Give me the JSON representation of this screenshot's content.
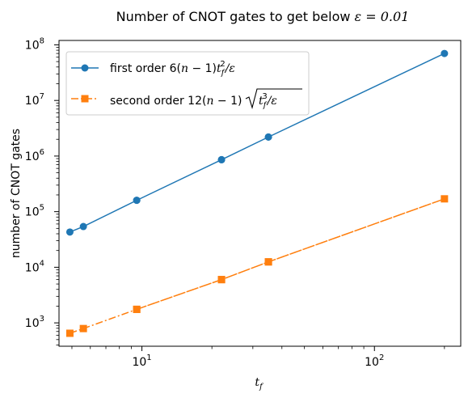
{
  "chart_data": {
    "type": "line",
    "title": {
      "text": "Number of CNOT gates to get below ",
      "math": "ε = 0.01"
    },
    "xlabel": {
      "base": "t",
      "sub": "f"
    },
    "ylabel": "number of CNOT gates",
    "xscale": "log",
    "yscale": "log",
    "xlim": [
      4.4,
      235
    ],
    "ylim": [
      380,
      120000000
    ],
    "x_ticks": [
      {
        "value": 10,
        "base": "10",
        "exp": "1"
      },
      {
        "value": 100,
        "base": "10",
        "exp": "2"
      }
    ],
    "y_ticks": [
      {
        "value": 1000,
        "base": "10",
        "exp": "3"
      },
      {
        "value": 10000,
        "base": "10",
        "exp": "4"
      },
      {
        "value": 100000,
        "base": "10",
        "exp": "5"
      },
      {
        "value": 1000000,
        "base": "10",
        "exp": "6"
      },
      {
        "value": 10000000,
        "base": "10",
        "exp": "7"
      },
      {
        "value": 100000000,
        "base": "10",
        "exp": "8"
      }
    ],
    "legend": {
      "placement": "top-left",
      "entries": [
        {
          "prefix": "first order 6(",
          "math": "n",
          "suffix": " − 1)",
          "tail": "t",
          "tail_sub": "f",
          "tail_sup": "2",
          "end": "/ε"
        },
        {
          "prefix": "second order 12(",
          "math": "n",
          "suffix": " − 1)",
          "sqrt_base": "t",
          "sqrt_sub": "f",
          "sqrt_sup": "3",
          "sqrt_end": "/ε"
        }
      ]
    },
    "series": [
      {
        "color": "#1f77b4",
        "marker": "circle",
        "linestyle": "solid",
        "points": [
          [
            4.9,
            43000
          ],
          [
            5.6,
            54000
          ],
          [
            9.5,
            160000
          ],
          [
            22,
            860000
          ],
          [
            35,
            2200000
          ],
          [
            200,
            70000000
          ],
          [
            35,
            2200000
          ],
          [
            22,
            860000
          ],
          [
            9.5,
            160000
          ]
        ]
      },
      {
        "color": "#ff7f0e",
        "marker": "square",
        "linestyle": "dashdot",
        "points": [
          [
            4.9,
            650
          ],
          [
            5.6,
            790
          ],
          [
            9.5,
            1750
          ],
          [
            22,
            6000
          ],
          [
            35,
            12500
          ],
          [
            200,
            170000
          ],
          [
            35,
            12500
          ],
          [
            22,
            6000
          ],
          [
            9.5,
            1750
          ]
        ]
      }
    ]
  }
}
